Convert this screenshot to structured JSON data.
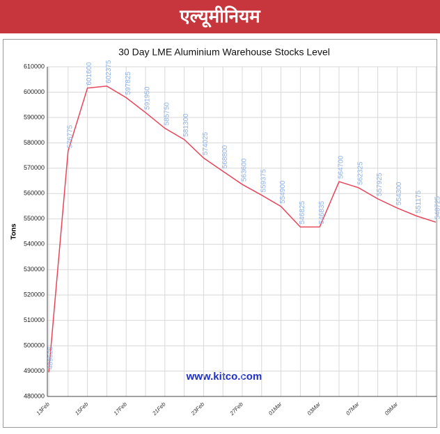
{
  "header": {
    "title": "एल्यूमीनियम"
  },
  "chart_data": {
    "type": "line",
    "title": "30 Day LME Aluminium Warehouse Stocks Level",
    "ylabel": "Tons",
    "annotation": "www.kitco.com",
    "categories": [
      "13Feb",
      null,
      "15Feb",
      null,
      "17Feb",
      null,
      "21Feb",
      null,
      "23Feb",
      null,
      "27Feb",
      null,
      "01Mar",
      null,
      "03Mar",
      null,
      "07Mar",
      null,
      "09Mar",
      null,
      null
    ],
    "series": [
      {
        "name": "Stocks",
        "color": "#e8455a",
        "values": [
          489525,
          576775,
          601600,
          602375,
          597825,
          591950,
          585750,
          581300,
          574025,
          568800,
          563600,
          559375,
          554900,
          546825,
          546835,
          564700,
          562325,
          557925,
          554300,
          551175,
          548725
        ]
      }
    ],
    "label_color": "#8fb3e8",
    "ylim": [
      480000,
      610000
    ],
    "yticks": [
      480000,
      490000,
      500000,
      510000,
      520000,
      530000,
      540000,
      550000,
      560000,
      570000,
      580000,
      590000,
      600000,
      610000
    ],
    "grid": true
  }
}
